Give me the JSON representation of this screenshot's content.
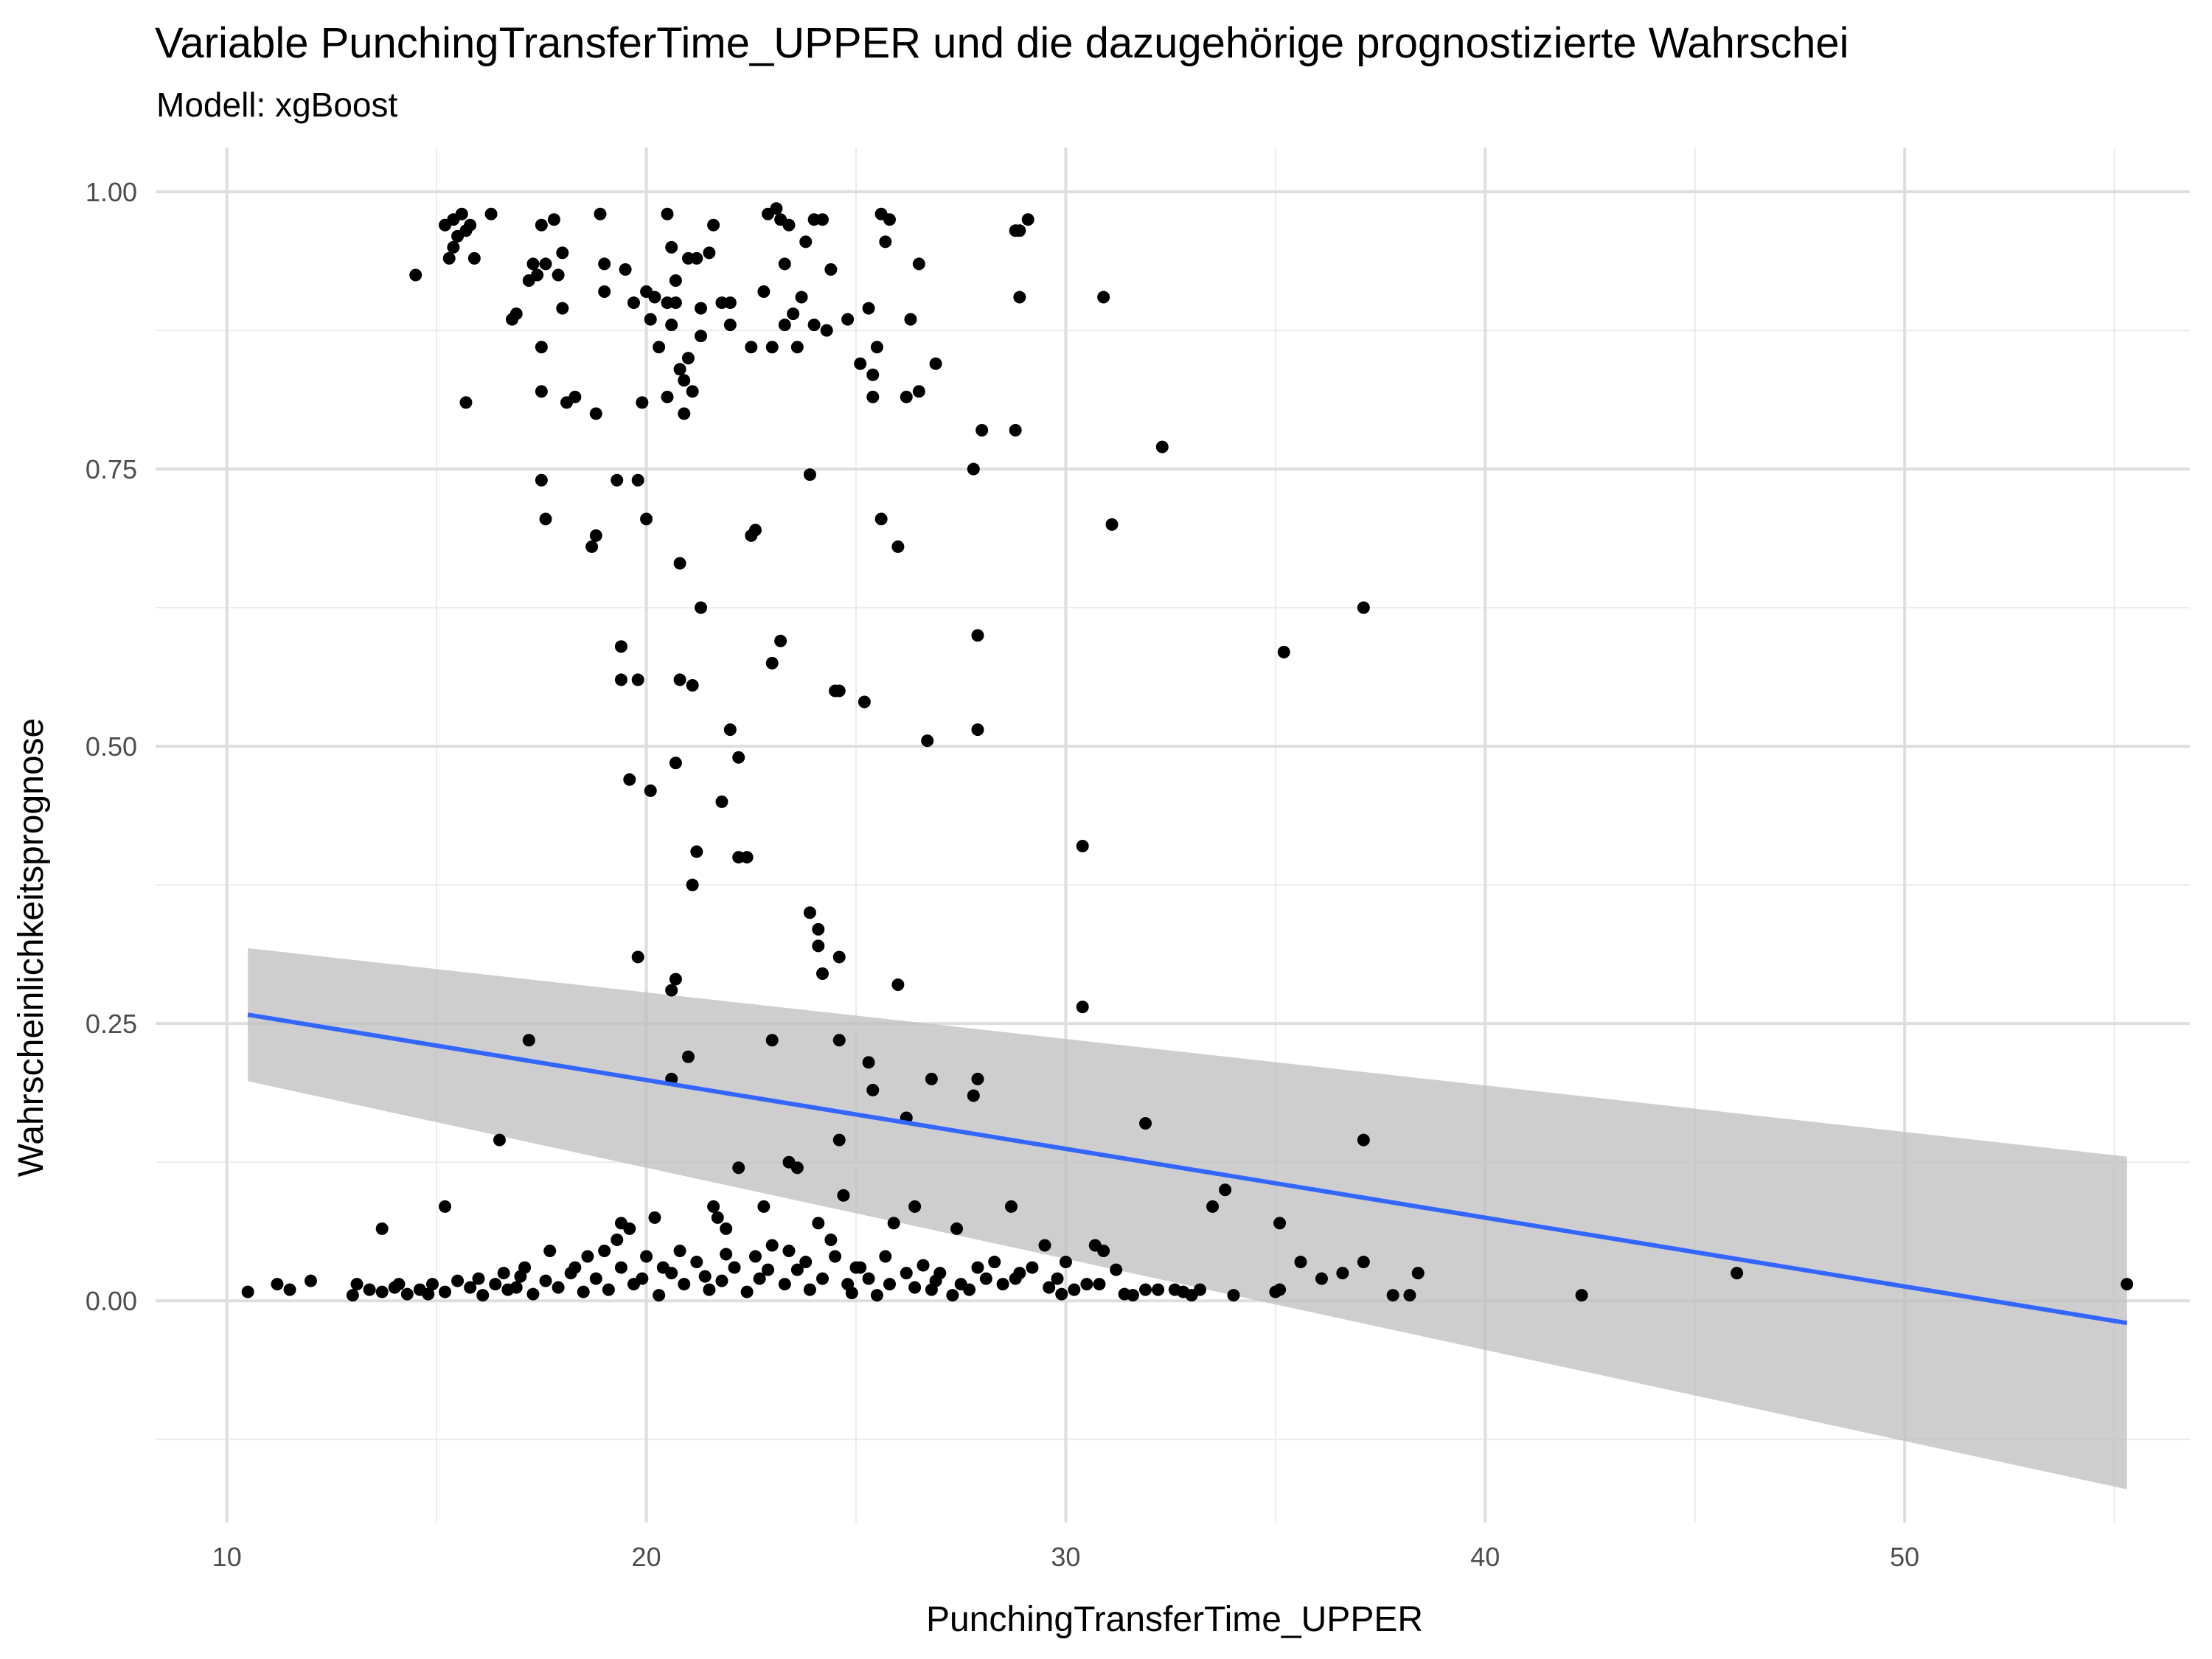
{
  "chart_data": {
    "type": "scatter",
    "title": "Variable PunchingTransferTime_UPPER und die dazugehörige prognostizierte Wahrschei",
    "subtitle": "Modell: xgBoost",
    "xlabel": "PunchingTransferTime_UPPER",
    "ylabel": "Wahrscheinlichkeitsprognose",
    "xlim": [
      8.3,
      56.8
    ],
    "ylim": [
      -0.2,
      1.04
    ],
    "x_ticks": [
      10,
      20,
      30,
      40,
      50
    ],
    "x_tick_labels": [
      "10",
      "20",
      "30",
      "40",
      "50"
    ],
    "y_ticks": [
      0,
      0.25,
      0.5,
      0.75,
      1.0
    ],
    "y_tick_labels": [
      "0.00",
      "0.25",
      "0.50",
      "0.75",
      "1.00"
    ],
    "grid": true,
    "point_color": "#000000",
    "trend_line": {
      "method": "linear",
      "x": [
        10.5,
        55.3
      ],
      "y": [
        0.258,
        -0.02
      ],
      "color": "#3366FF"
    },
    "confidence_band": {
      "x": [
        10.5,
        55.3
      ],
      "upper": [
        0.318,
        0.13
      ],
      "lower": [
        0.198,
        -0.17
      ],
      "color": "#BEBEBE"
    },
    "points": [
      [
        15.2,
        0.97
      ],
      [
        15.4,
        0.975
      ],
      [
        15.5,
        0.96
      ],
      [
        15.6,
        0.98
      ],
      [
        15.7,
        0.965
      ],
      [
        15.8,
        0.97
      ],
      [
        15.3,
        0.94
      ],
      [
        15.9,
        0.94
      ],
      [
        16.3,
        0.98
      ],
      [
        14.5,
        0.925
      ],
      [
        15.4,
        0.95
      ],
      [
        15.7,
        0.81
      ],
      [
        16.8,
        0.885
      ],
      [
        16.9,
        0.89
      ],
      [
        17.2,
        0.92
      ],
      [
        17.3,
        0.935
      ],
      [
        17.4,
        0.925
      ],
      [
        17.5,
        0.97
      ],
      [
        17.8,
        0.975
      ],
      [
        17.6,
        0.935
      ],
      [
        18.0,
        0.945
      ],
      [
        17.9,
        0.925
      ],
      [
        18.0,
        0.895
      ],
      [
        17.5,
        0.86
      ],
      [
        17.5,
        0.82
      ],
      [
        18.1,
        0.81
      ],
      [
        18.3,
        0.815
      ],
      [
        18.8,
        0.8
      ],
      [
        18.9,
        0.98
      ],
      [
        19.0,
        0.935
      ],
      [
        19.0,
        0.91
      ],
      [
        19.5,
        0.93
      ],
      [
        19.7,
        0.9
      ],
      [
        19.9,
        0.81
      ],
      [
        20.0,
        0.91
      ],
      [
        20.1,
        0.885
      ],
      [
        20.2,
        0.905
      ],
      [
        20.3,
        0.86
      ],
      [
        20.5,
        0.98
      ],
      [
        20.6,
        0.95
      ],
      [
        20.5,
        0.9
      ],
      [
        20.6,
        0.88
      ],
      [
        20.7,
        0.9
      ],
      [
        20.7,
        0.92
      ],
      [
        20.8,
        0.84
      ],
      [
        20.9,
        0.83
      ],
      [
        20.9,
        0.8
      ],
      [
        20.5,
        0.815
      ],
      [
        21.0,
        0.94
      ],
      [
        21.0,
        0.85
      ],
      [
        21.1,
        0.82
      ],
      [
        21.2,
        0.94
      ],
      [
        21.3,
        0.895
      ],
      [
        21.3,
        0.87
      ],
      [
        21.6,
        0.97
      ],
      [
        21.5,
        0.945
      ],
      [
        21.8,
        0.9
      ],
      [
        22.0,
        0.9
      ],
      [
        22.0,
        0.88
      ],
      [
        22.5,
        0.86
      ],
      [
        22.8,
        0.91
      ],
      [
        22.9,
        0.98
      ],
      [
        23.1,
        0.985
      ],
      [
        23.2,
        0.975
      ],
      [
        23.0,
        0.86
      ],
      [
        23.3,
        0.88
      ],
      [
        23.4,
        0.97
      ],
      [
        23.3,
        0.935
      ],
      [
        23.5,
        0.89
      ],
      [
        23.6,
        0.86
      ],
      [
        23.7,
        0.905
      ],
      [
        23.8,
        0.955
      ],
      [
        24.0,
        0.975
      ],
      [
        24.2,
        0.975
      ],
      [
        24.0,
        0.88
      ],
      [
        24.3,
        0.875
      ],
      [
        24.4,
        0.93
      ],
      [
        24.8,
        0.885
      ],
      [
        25.1,
        0.845
      ],
      [
        25.3,
        0.895
      ],
      [
        25.4,
        0.835
      ],
      [
        25.4,
        0.815
      ],
      [
        25.5,
        0.86
      ],
      [
        25.6,
        0.98
      ],
      [
        25.8,
        0.975
      ],
      [
        25.7,
        0.955
      ],
      [
        26.2,
        0.815
      ],
      [
        26.3,
        0.885
      ],
      [
        26.5,
        0.935
      ],
      [
        26.5,
        0.82
      ],
      [
        26.9,
        0.845
      ],
      [
        28.0,
        0.785
      ],
      [
        28.8,
        0.965
      ],
      [
        28.9,
        0.965
      ],
      [
        28.8,
        0.785
      ],
      [
        29.1,
        0.975
      ],
      [
        28.9,
        0.905
      ],
      [
        30.9,
        0.905
      ],
      [
        32.3,
        0.77
      ],
      [
        27.8,
        0.75
      ],
      [
        31.1,
        0.7
      ],
      [
        37.1,
        0.625
      ],
      [
        35.2,
        0.585
      ],
      [
        17.5,
        0.74
      ],
      [
        17.6,
        0.705
      ],
      [
        18.7,
        0.68
      ],
      [
        18.8,
        0.69
      ],
      [
        19.3,
        0.74
      ],
      [
        19.8,
        0.74
      ],
      [
        20.0,
        0.705
      ],
      [
        20.8,
        0.665
      ],
      [
        21.3,
        0.625
      ],
      [
        22.5,
        0.69
      ],
      [
        22.6,
        0.695
      ],
      [
        23.9,
        0.745
      ],
      [
        25.6,
        0.705
      ],
      [
        26.0,
        0.68
      ],
      [
        19.4,
        0.59
      ],
      [
        19.4,
        0.56
      ],
      [
        19.8,
        0.56
      ],
      [
        20.8,
        0.56
      ],
      [
        21.1,
        0.555
      ],
      [
        23.0,
        0.575
      ],
      [
        23.2,
        0.595
      ],
      [
        24.6,
        0.55
      ],
      [
        24.5,
        0.55
      ],
      [
        25.2,
        0.54
      ],
      [
        27.9,
        0.6
      ],
      [
        27.9,
        0.515
      ],
      [
        26.7,
        0.505
      ],
      [
        19.6,
        0.47
      ],
      [
        20.1,
        0.46
      ],
      [
        20.7,
        0.485
      ],
      [
        21.8,
        0.45
      ],
      [
        22.0,
        0.515
      ],
      [
        22.2,
        0.49
      ],
      [
        21.2,
        0.405
      ],
      [
        21.1,
        0.375
      ],
      [
        22.2,
        0.4
      ],
      [
        22.4,
        0.4
      ],
      [
        23.9,
        0.35
      ],
      [
        24.1,
        0.335
      ],
      [
        24.1,
        0.32
      ],
      [
        24.2,
        0.295
      ],
      [
        24.6,
        0.31
      ],
      [
        19.8,
        0.31
      ],
      [
        20.6,
        0.28
      ],
      [
        20.7,
        0.29
      ],
      [
        26.0,
        0.285
      ],
      [
        30.4,
        0.41
      ],
      [
        30.4,
        0.265
      ],
      [
        17.2,
        0.235
      ],
      [
        20.6,
        0.2
      ],
      [
        21.0,
        0.22
      ],
      [
        23.0,
        0.235
      ],
      [
        24.6,
        0.235
      ],
      [
        25.3,
        0.215
      ],
      [
        25.4,
        0.19
      ],
      [
        26.2,
        0.165
      ],
      [
        26.8,
        0.2
      ],
      [
        27.8,
        0.185
      ],
      [
        27.9,
        0.2
      ],
      [
        31.9,
        0.16
      ],
      [
        33.8,
        0.1
      ],
      [
        33.5,
        0.085
      ],
      [
        35.1,
        0.07
      ],
      [
        37.1,
        0.145
      ],
      [
        16.5,
        0.145
      ],
      [
        24.6,
        0.145
      ],
      [
        23.4,
        0.125
      ],
      [
        23.6,
        0.12
      ],
      [
        22.2,
        0.12
      ],
      [
        21.6,
        0.085
      ],
      [
        21.7,
        0.075
      ],
      [
        21.9,
        0.065
      ],
      [
        22.8,
        0.085
      ],
      [
        15.2,
        0.085
      ],
      [
        13.7,
        0.065
      ],
      [
        19.4,
        0.07
      ],
      [
        19.6,
        0.065
      ],
      [
        20.2,
        0.075
      ],
      [
        24.1,
        0.07
      ],
      [
        24.7,
        0.095
      ],
      [
        25.9,
        0.07
      ],
      [
        26.4,
        0.085
      ],
      [
        27.4,
        0.065
      ],
      [
        28.7,
        0.085
      ],
      [
        35.6,
        0.035
      ],
      [
        36.1,
        0.02
      ],
      [
        36.6,
        0.025
      ],
      [
        37.1,
        0.035
      ],
      [
        37.8,
        0.005
      ],
      [
        38.2,
        0.005
      ],
      [
        38.4,
        0.025
      ],
      [
        42.3,
        0.005
      ],
      [
        46.0,
        0.025
      ],
      [
        55.3,
        0.015
      ],
      [
        35.1,
        0.01
      ],
      [
        35.0,
        0.008
      ],
      [
        34.0,
        0.005
      ],
      [
        33.2,
        0.01
      ],
      [
        33.0,
        0.005
      ],
      [
        32.6,
        0.01
      ],
      [
        32.2,
        0.01
      ],
      [
        31.9,
        0.01
      ],
      [
        31.6,
        0.005
      ],
      [
        31.2,
        0.028
      ],
      [
        30.9,
        0.045
      ],
      [
        30.7,
        0.05
      ],
      [
        30.5,
        0.015
      ],
      [
        30.2,
        0.01
      ],
      [
        29.8,
        0.02
      ],
      [
        29.5,
        0.05
      ],
      [
        29.2,
        0.03
      ],
      [
        28.9,
        0.025
      ],
      [
        28.5,
        0.015
      ],
      [
        28.1,
        0.02
      ],
      [
        27.7,
        0.01
      ],
      [
        27.3,
        0.005
      ],
      [
        26.9,
        0.018
      ],
      [
        26.6,
        0.032
      ],
      [
        26.2,
        0.025
      ],
      [
        25.8,
        0.015
      ],
      [
        25.5,
        0.005
      ],
      [
        25.1,
        0.03
      ],
      [
        24.8,
        0.015
      ],
      [
        24.5,
        0.04
      ],
      [
        24.2,
        0.02
      ],
      [
        23.9,
        0.01
      ],
      [
        23.6,
        0.028
      ],
      [
        23.3,
        0.015
      ],
      [
        23.0,
        0.05
      ],
      [
        22.7,
        0.02
      ],
      [
        22.4,
        0.008
      ],
      [
        22.1,
        0.03
      ],
      [
        21.8,
        0.018
      ],
      [
        21.5,
        0.01
      ],
      [
        21.2,
        0.035
      ],
      [
        20.9,
        0.015
      ],
      [
        20.6,
        0.025
      ],
      [
        20.3,
        0.005
      ],
      [
        20.0,
        0.04
      ],
      [
        19.7,
        0.015
      ],
      [
        19.4,
        0.03
      ],
      [
        19.1,
        0.01
      ],
      [
        18.8,
        0.02
      ],
      [
        18.5,
        0.008
      ],
      [
        18.2,
        0.025
      ],
      [
        17.9,
        0.012
      ],
      [
        17.6,
        0.018
      ],
      [
        17.3,
        0.006
      ],
      [
        17.0,
        0.022
      ],
      [
        16.7,
        0.01
      ],
      [
        16.4,
        0.015
      ],
      [
        16.1,
        0.005
      ],
      [
        15.8,
        0.012
      ],
      [
        15.5,
        0.018
      ],
      [
        15.2,
        0.008
      ],
      [
        14.9,
        0.015
      ],
      [
        14.6,
        0.01
      ],
      [
        14.3,
        0.006
      ],
      [
        14.0,
        0.012
      ],
      [
        13.7,
        0.008
      ],
      [
        13.4,
        0.01
      ],
      [
        13.1,
        0.015
      ],
      [
        12.0,
        0.018
      ],
      [
        11.5,
        0.01
      ],
      [
        11.2,
        0.015
      ],
      [
        10.5,
        0.008
      ],
      [
        13.0,
        0.005
      ],
      [
        14.1,
        0.015
      ],
      [
        14.8,
        0.006
      ],
      [
        16.0,
        0.02
      ],
      [
        16.9,
        0.012
      ],
      [
        17.7,
        0.045
      ],
      [
        18.3,
        0.03
      ],
      [
        19.0,
        0.045
      ],
      [
        19.9,
        0.02
      ],
      [
        20.8,
        0.045
      ],
      [
        21.4,
        0.022
      ],
      [
        22.6,
        0.04
      ],
      [
        23.4,
        0.045
      ],
      [
        24.4,
        0.055
      ],
      [
        25.0,
        0.03
      ],
      [
        25.7,
        0.04
      ],
      [
        26.4,
        0.012
      ],
      [
        27.0,
        0.025
      ],
      [
        27.9,
        0.03
      ],
      [
        28.8,
        0.02
      ],
      [
        29.6,
        0.012
      ],
      [
        30.0,
        0.035
      ],
      [
        30.8,
        0.015
      ],
      [
        31.4,
        0.006
      ],
      [
        32.8,
        0.008
      ],
      [
        17.1,
        0.03
      ],
      [
        18.6,
        0.04
      ],
      [
        20.4,
        0.03
      ],
      [
        21.9,
        0.042
      ],
      [
        23.8,
        0.035
      ],
      [
        25.3,
        0.02
      ],
      [
        26.8,
        0.01
      ],
      [
        28.3,
        0.035
      ],
      [
        29.9,
        0.006
      ],
      [
        16.6,
        0.025
      ],
      [
        19.3,
        0.055
      ],
      [
        22.9,
        0.028
      ],
      [
        24.9,
        0.007
      ],
      [
        27.5,
        0.015
      ]
    ]
  }
}
